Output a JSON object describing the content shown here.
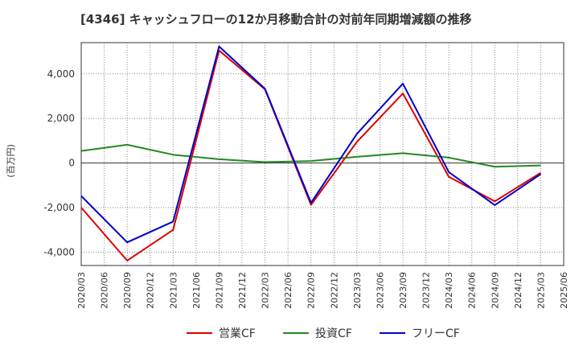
{
  "chart_data": {
    "type": "line",
    "title": "[4346]  キャッシュフローの12か月移動合計の対前年同期増減額の推移",
    "ylabel": "(百万円)",
    "xlabel": "",
    "ylim": [
      -4600,
      5400
    ],
    "yticks": [
      4000,
      2000,
      0,
      -2000,
      -4000
    ],
    "ytick_labels": [
      "4,000",
      "2,000",
      "0",
      "-2,000",
      "-4,000"
    ],
    "grid": true,
    "legend_position": "bottom-center",
    "categories": [
      "2020/03",
      "2020/06",
      "2020/09",
      "2020/12",
      "2021/03",
      "2021/06",
      "2021/09",
      "2021/12",
      "2022/03",
      "2022/06",
      "2022/09",
      "2022/12",
      "2023/03",
      "2023/06",
      "2023/09",
      "2023/12",
      "2024/03",
      "2024/06",
      "2024/09",
      "2024/12",
      "2025/03",
      "2025/06"
    ],
    "series": [
      {
        "name": "営業CF",
        "color": "#dd0000",
        "values": [
          -2000,
          null,
          -4380,
          null,
          -3000,
          null,
          5050,
          null,
          3300,
          null,
          -1880,
          null,
          950,
          null,
          3120,
          null,
          -620,
          null,
          -1720,
          null,
          -440,
          null
        ]
      },
      {
        "name": "投資CF",
        "color": "#228822",
        "values": [
          540,
          null,
          820,
          null,
          370,
          null,
          170,
          null,
          40,
          null,
          90,
          null,
          280,
          null,
          440,
          null,
          240,
          null,
          -170,
          null,
          -110,
          null
        ]
      },
      {
        "name": "フリーCF",
        "color": "#0000cc",
        "values": [
          -1480,
          null,
          -3560,
          null,
          -2630,
          null,
          5230,
          null,
          3330,
          null,
          -1790,
          null,
          1310,
          null,
          3560,
          null,
          -410,
          null,
          -1890,
          null,
          -500,
          null
        ]
      }
    ]
  }
}
